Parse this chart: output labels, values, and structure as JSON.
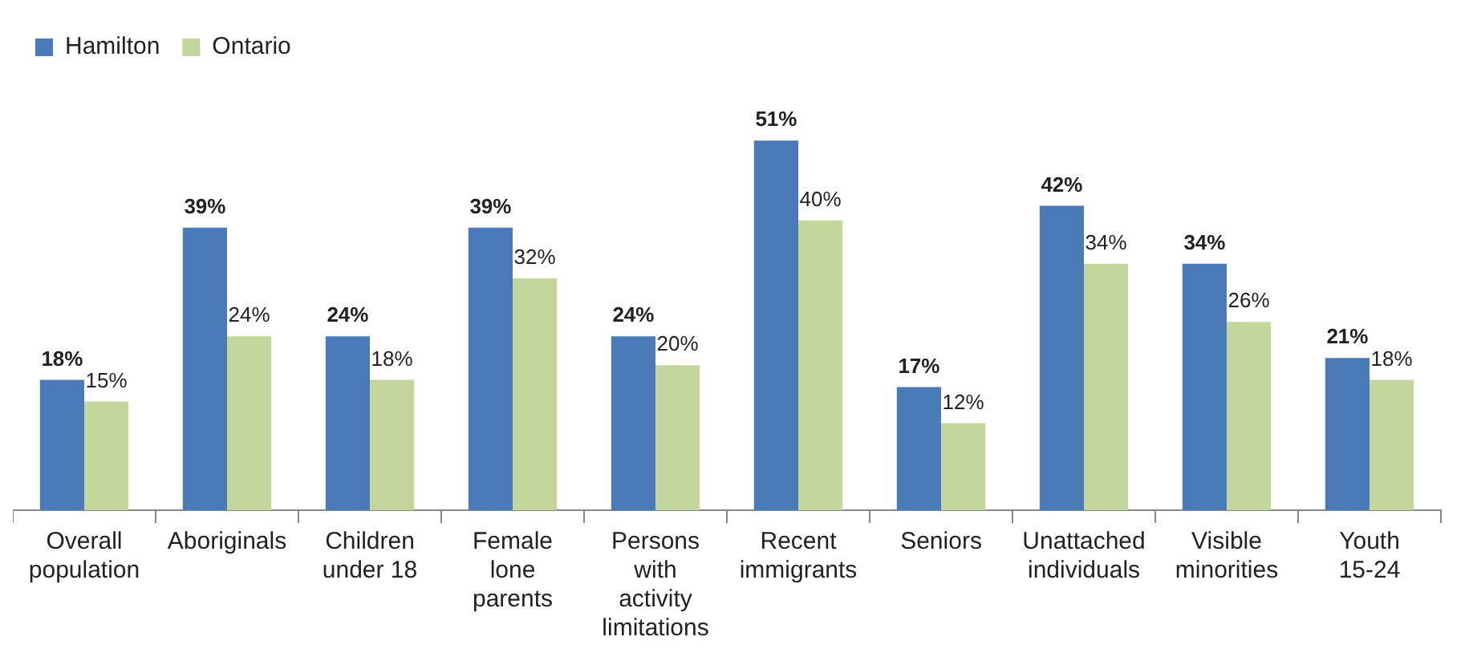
{
  "chart_data": {
    "type": "bar",
    "categories": [
      "Overall\npopulation",
      "Aboriginals",
      "Children\nunder 18",
      "Female\nlone\nparents",
      "Persons\nwith\nactivity\nlimitations",
      "Recent\nimmigrants",
      "Seniors",
      "Unattached\nindividuals",
      "Visible\nminorities",
      "Youth\n15-24"
    ],
    "series": [
      {
        "name": "Hamilton",
        "color": "#4a7ab8",
        "values": [
          18,
          39,
          24,
          39,
          24,
          51,
          17,
          42,
          34,
          21
        ],
        "value_labels": [
          "18%",
          "39%",
          "24%",
          "39%",
          "24%",
          "51%",
          "17%",
          "42%",
          "34%",
          "21%"
        ]
      },
      {
        "name": "Ontario",
        "color": "#c3d69b",
        "values": [
          15,
          24,
          18,
          32,
          20,
          40,
          12,
          34,
          26,
          18
        ],
        "value_labels": [
          "15%",
          "24%",
          "18%",
          "32%",
          "20%",
          "40%",
          "12%",
          "34%",
          "26%",
          "18%"
        ]
      }
    ],
    "legend": "top left",
    "grid": false
  }
}
